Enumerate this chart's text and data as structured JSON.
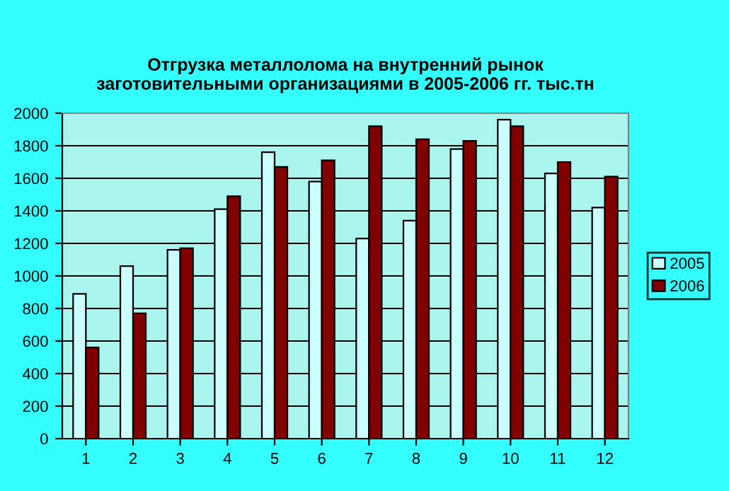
{
  "chart_data": {
    "type": "bar",
    "title": "Отгрузка металлолома на внутренний рынок\nзаготовительными организациями в 2005-2006 гг. тыс.тн",
    "categories": [
      "1",
      "2",
      "3",
      "4",
      "5",
      "6",
      "7",
      "8",
      "9",
      "10",
      "11",
      "12"
    ],
    "series": [
      {
        "name": "2005",
        "color": "#ccffff",
        "values": [
          890,
          1060,
          1160,
          1410,
          1760,
          1580,
          1230,
          1340,
          1780,
          1960,
          1630,
          1420
        ]
      },
      {
        "name": "2006",
        "color": "#800000",
        "values": [
          560,
          770,
          1170,
          1490,
          1670,
          1710,
          1920,
          1840,
          1830,
          1920,
          1700,
          1610
        ]
      }
    ],
    "ylim": [
      0,
      2000
    ],
    "yticks": [
      0,
      200,
      400,
      600,
      800,
      1000,
      1200,
      1400,
      1600,
      1800,
      2000
    ],
    "grid": "y",
    "legend": "right"
  }
}
